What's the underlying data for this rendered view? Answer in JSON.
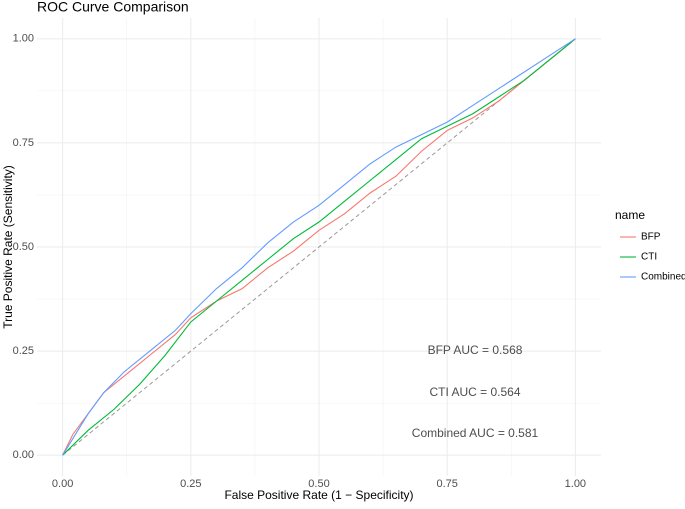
{
  "chart_data": {
    "type": "line",
    "title": "ROC Curve Comparison",
    "x_label": "False Positive Rate (1 − Specificity)",
    "y_label": "True Positive Rate (Sensitivity)",
    "legend_title": "name",
    "legend_position": "right",
    "grid": true,
    "reference_line": true,
    "xlim": [
      -0.05,
      1.05
    ],
    "ylim": [
      -0.05,
      1.05
    ],
    "xticks": [
      {
        "value": 0,
        "label": "0.00"
      },
      {
        "value": 0.25,
        "label": "0.25"
      },
      {
        "value": 0.5,
        "label": "0.50"
      },
      {
        "value": 0.75,
        "label": "0.75"
      },
      {
        "value": 1,
        "label": "1.00"
      }
    ],
    "yticks": [
      {
        "value": 0,
        "label": "0.00"
      },
      {
        "value": 0.25,
        "label": "0.25"
      },
      {
        "value": 0.5,
        "label": "0.50"
      },
      {
        "value": 0.75,
        "label": "0.75"
      },
      {
        "value": 1,
        "label": "1.00"
      }
    ],
    "series": [
      {
        "name": "BFP",
        "color": "#f8766d",
        "x": [
          0,
          0.02,
          0.05,
          0.08,
          0.12,
          0.17,
          0.22,
          0.25,
          0.3,
          0.35,
          0.4,
          0.45,
          0.5,
          0.55,
          0.6,
          0.65,
          0.7,
          0.75,
          0.8,
          0.85,
          0.9,
          0.95,
          1
        ],
        "values": [
          0,
          0.05,
          0.1,
          0.15,
          0.19,
          0.24,
          0.29,
          0.33,
          0.37,
          0.4,
          0.45,
          0.49,
          0.54,
          0.58,
          0.63,
          0.67,
          0.73,
          0.78,
          0.81,
          0.85,
          0.9,
          0.95,
          1
        ]
      },
      {
        "name": "CTI",
        "color": "#00ba38",
        "x": [
          0,
          0.05,
          0.1,
          0.15,
          0.2,
          0.25,
          0.3,
          0.35,
          0.4,
          0.45,
          0.5,
          0.55,
          0.6,
          0.65,
          0.7,
          0.75,
          0.8,
          0.85,
          0.9,
          0.95,
          1
        ],
        "values": [
          0,
          0.06,
          0.11,
          0.17,
          0.24,
          0.32,
          0.37,
          0.42,
          0.47,
          0.52,
          0.56,
          0.61,
          0.66,
          0.71,
          0.76,
          0.79,
          0.82,
          0.86,
          0.9,
          0.95,
          1
        ]
      },
      {
        "name": "Combined",
        "color": "#619cff",
        "x": [
          0,
          0.02,
          0.05,
          0.08,
          0.12,
          0.17,
          0.22,
          0.25,
          0.3,
          0.35,
          0.4,
          0.45,
          0.5,
          0.55,
          0.6,
          0.65,
          0.7,
          0.75,
          0.8,
          0.85,
          0.9,
          0.95,
          1
        ],
        "values": [
          0,
          0.04,
          0.1,
          0.15,
          0.2,
          0.25,
          0.3,
          0.34,
          0.4,
          0.45,
          0.51,
          0.56,
          0.6,
          0.65,
          0.7,
          0.74,
          0.77,
          0.8,
          0.84,
          0.88,
          0.92,
          0.96,
          1
        ]
      }
    ],
    "annotations": [
      {
        "text": "BFP AUC = 0.568",
        "color": "#f8766d"
      },
      {
        "text": "CTI AUC = 0.564",
        "color": "#00ba38"
      },
      {
        "text": "Combined AUC = 0.581",
        "color": "#619cff"
      }
    ]
  }
}
